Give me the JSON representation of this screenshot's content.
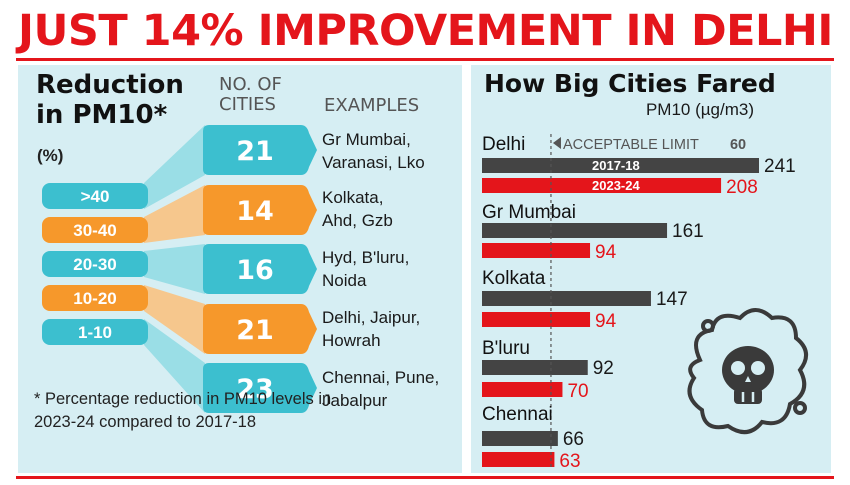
{
  "headline": "JUST 14% IMPROVEMENT IN DELHI",
  "left_panel": {
    "title_line1": "Reduction",
    "title_line2": "in PM10*",
    "unit": "(%)",
    "col_cities_line1": "NO. OF",
    "col_cities_line2": "CITIES",
    "col_examples": "EXAMPLES",
    "footnote": "* Percentage reduction in PM10 levels in 2023-24 compared to 2017-18"
  },
  "right_panel": {
    "title": "How Big Cities Fared",
    "unit": "PM10 (µg/m3)",
    "limit_label": "ACCEPTABLE LIMIT",
    "limit_value_label": "60"
  },
  "chart_data": [
    {
      "type": "bar",
      "orientation": "horizontal",
      "categories": [
        ">40",
        "30-40",
        "20-30",
        "10-20",
        "1-10"
      ],
      "values": [
        21,
        14,
        16,
        21,
        23
      ],
      "value_labels": [
        "21",
        "14",
        "16",
        "21",
        "23"
      ],
      "examples": [
        [
          "Gr Mumbai,",
          "Varanasi, Lko"
        ],
        [
          "Kolkata,",
          "Ahd, Gzb"
        ],
        [
          "Hyd, B'luru,",
          "Noida"
        ],
        [
          "Delhi, Jaipur,",
          "Howrah"
        ],
        [
          "Chennai, Pune,",
          "Jabalpur"
        ]
      ],
      "colors": [
        "#3cbfcf",
        "#f6982b",
        "#3cbfcf",
        "#f6982b",
        "#3cbfcf"
      ]
    },
    {
      "type": "bar",
      "orientation": "horizontal",
      "categories": [
        "Delhi",
        "Gr Mumbai",
        "Kolkata",
        "B'luru",
        "Chennai"
      ],
      "series": [
        {
          "name": "2017-18",
          "color": "#444444",
          "values": [
            241,
            161,
            147,
            92,
            66
          ],
          "value_labels": [
            "241",
            "161",
            "147",
            "92",
            "66"
          ]
        },
        {
          "name": "2023-24",
          "color": "#e4151b",
          "values": [
            208,
            94,
            94,
            70,
            63
          ],
          "value_labels": [
            "208",
            "94",
            "94",
            "70",
            "63"
          ]
        }
      ],
      "reference_line": 60,
      "xlim": [
        0,
        241
      ]
    }
  ]
}
